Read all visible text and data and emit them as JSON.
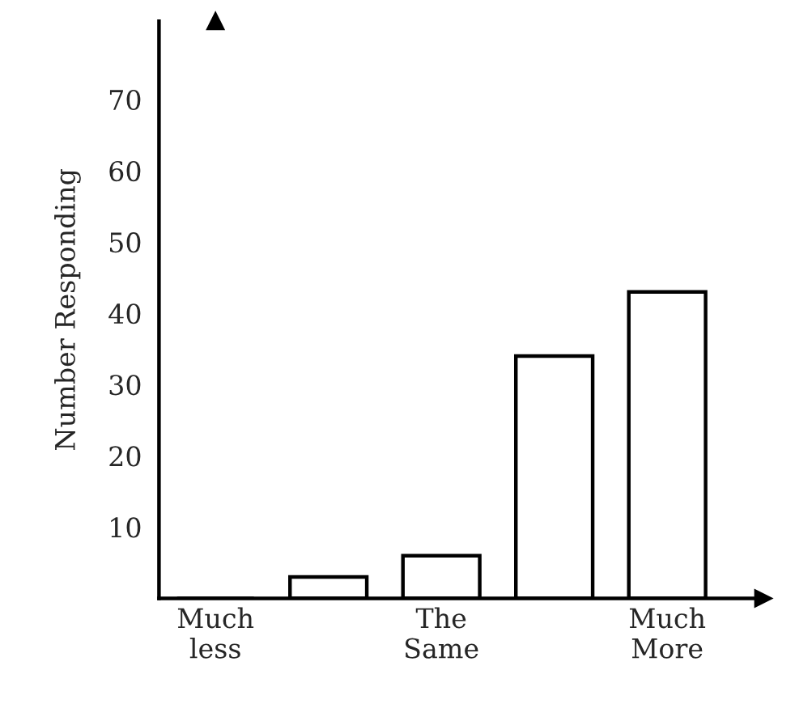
{
  "chart_data": {
    "type": "bar",
    "ylabel": "Number Responding",
    "categories": [
      "Much\nless",
      null,
      "The\nSame",
      null,
      "Much\nMore"
    ],
    "values": [
      0,
      3,
      6,
      34,
      43
    ],
    "color": "#ffffff",
    "ylim": [
      0,
      81
    ],
    "yticks": [
      10,
      20,
      30,
      40,
      50,
      60,
      70
    ],
    "grid": false,
    "legend": false
  }
}
